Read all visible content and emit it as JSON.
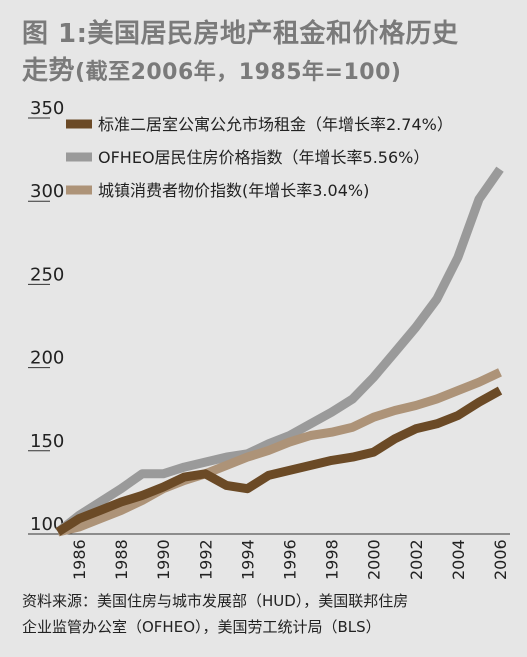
{
  "header": {
    "title_line1": "图 1:美国居民房地产租金和价格历史",
    "title_line2": "走势",
    "title_sub": "(截至2006年，1985年=100)"
  },
  "source": {
    "line1": "资料来源：美国住房与城市发展部（HUD），美国联邦住房",
    "line2": "企业监管办公室（OFHEO），美国劳工统计局（BLS）"
  },
  "colors": {
    "background": "#e6e6e6",
    "rent": "#6b4a26",
    "ofheo": "#9a9a9a",
    "cpi": "#ad9378",
    "title": "#7a7a7a"
  },
  "chart_data": {
    "type": "line",
    "title": "图 1:美国居民房地产租金和价格历史走势(截至2006年，1985年=100)",
    "xlabel": "",
    "ylabel": "",
    "ylim": [
      100,
      350
    ],
    "xlim": [
      1985,
      2006
    ],
    "yticks": [
      100,
      150,
      200,
      250,
      300,
      350
    ],
    "xticks": [
      1986,
      1988,
      1990,
      1992,
      1994,
      1996,
      1998,
      2000,
      2002,
      2004,
      2006
    ],
    "grid": false,
    "legend_position": "top-left",
    "x": [
      1985,
      1986,
      1987,
      1988,
      1989,
      1990,
      1991,
      1992,
      1993,
      1994,
      1995,
      1996,
      1997,
      1998,
      1999,
      2000,
      2001,
      2002,
      2003,
      2004,
      2005,
      2006
    ],
    "series": [
      {
        "name": "标准二居室公寓公允市场租金（年增长率2.74%）",
        "color": "#6b4a26",
        "values": [
          100,
          108,
          113,
          118,
          122,
          127,
          133,
          135,
          128,
          126,
          134,
          137,
          140,
          143,
          145,
          148,
          156,
          162,
          165,
          170,
          178,
          185
        ]
      },
      {
        "name": "OFHEO居民住房价格指数（年增长率5.56%）",
        "color": "#9a9a9a",
        "values": [
          100,
          110,
          118,
          126,
          135,
          135,
          139,
          142,
          145,
          147,
          153,
          158,
          165,
          172,
          180,
          193,
          208,
          223,
          240,
          265,
          300,
          318
        ]
      },
      {
        "name": "城镇消费者物价指数(年增长率3.04%)",
        "color": "#ad9378",
        "values": [
          100,
          103,
          108,
          113,
          119,
          126,
          131,
          135,
          140,
          145,
          149,
          154,
          158,
          160,
          163,
          169,
          173,
          176,
          180,
          185,
          190,
          196
        ]
      }
    ]
  }
}
